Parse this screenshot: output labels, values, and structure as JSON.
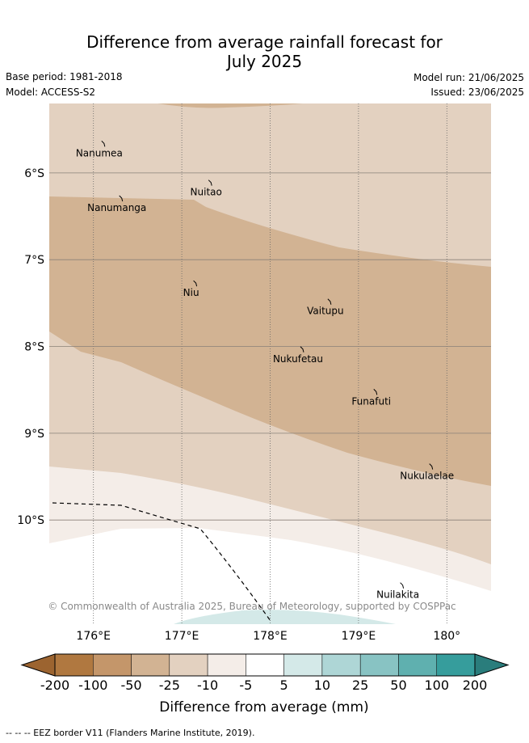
{
  "title_line1": "Difference from average rainfall forecast for",
  "title_line2": "July 2025",
  "base_period": "Base period: 1981-2018",
  "model": "Model: ACCESS-S2",
  "model_run": "Model run: 21/06/2025",
  "issued": "Issued: 23/06/2025",
  "map": {
    "lon_range": [
      175.5,
      180.5
    ],
    "lat_range": [
      -11.2,
      -5.2
    ],
    "grid_lon": [
      176,
      177,
      178,
      179,
      180
    ],
    "grid_lat": [
      -6,
      -7,
      -8,
      -9,
      -10
    ],
    "lon_labels": [
      "176°E",
      "177°E",
      "178°E",
      "179°E",
      "180°"
    ],
    "lat_labels": [
      "6°S",
      "7°S",
      "8°S",
      "9°S",
      "10°S"
    ],
    "islands": [
      {
        "name": "Nanumea",
        "lon": 176.12,
        "lat": -5.66
      },
      {
        "name": "Nuitao",
        "lon": 177.33,
        "lat": -6.11
      },
      {
        "name": "Nanumanga",
        "lon": 176.32,
        "lat": -6.29
      },
      {
        "name": "Niu",
        "lon": 177.16,
        "lat": -7.27
      },
      {
        "name": "Vaitupu",
        "lon": 178.68,
        "lat": -7.48
      },
      {
        "name": "Nukufetau",
        "lon": 178.37,
        "lat": -8.03
      },
      {
        "name": "Funafuti",
        "lon": 179.2,
        "lat": -8.52
      },
      {
        "name": "Nukulaelae",
        "lon": 179.83,
        "lat": -9.38
      },
      {
        "name": "Nuilakita",
        "lon": 179.5,
        "lat": -10.75
      }
    ],
    "copyright": "© Commonwealth of Australia 2025, Bureau of Meteorology, supported by COSPPac"
  },
  "colorbar": {
    "ticks": [
      "-200",
      "-100",
      "-50",
      "-25",
      "-10",
      "-5",
      "5",
      "10",
      "25",
      "50",
      "100",
      "200"
    ],
    "colors": [
      "#9c6430",
      "#b07840",
      "#c4966a",
      "#d2b393",
      "#e3d1c0",
      "#f4ede8",
      "#ffffff",
      "#d4e9e8",
      "#aed6d6",
      "#88c3c3",
      "#5fb0af",
      "#369d9c",
      "#2a7d7c"
    ],
    "label": "Difference from average (mm)"
  },
  "footer": "--  --  -- EEZ border V11 (Flanders Marine Institute, 2019)."
}
